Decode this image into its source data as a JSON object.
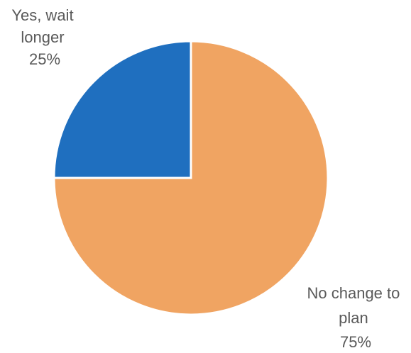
{
  "chart_data": {
    "type": "pie",
    "slices": [
      {
        "label_lines": [
          "Yes, wait",
          "longer",
          "25%"
        ],
        "value": 25,
        "color": "#1F6FBF"
      },
      {
        "label_lines": [
          "No change to",
          "plan",
          "75%"
        ],
        "value": 75,
        "color": "#F0A462"
      }
    ],
    "legend": "none",
    "start_angle_deg": 0,
    "direction": "counterclockwise"
  }
}
